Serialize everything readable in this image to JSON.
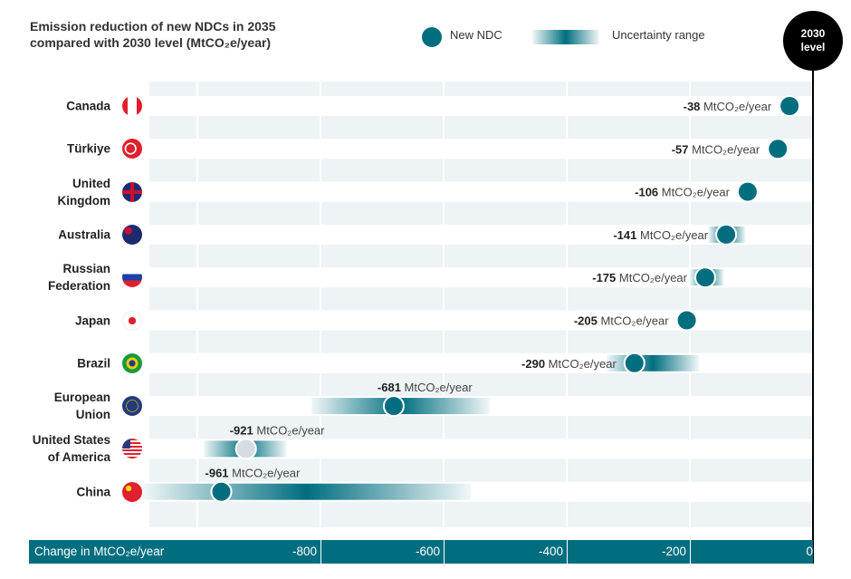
{
  "title_line1": "Emission reduction of new NDCs in 2035",
  "title_line2": "compared with 2030 level (MtCO₂e/year)",
  "legend": {
    "dot": "New NDC",
    "range": "Uncertainty range"
  },
  "reference": {
    "line1": "2030",
    "line2": "level"
  },
  "colors": {
    "accent": "#006e7f",
    "stripe": "#eef3f5",
    "reference": "#000000"
  },
  "chart_data": {
    "type": "dot-range",
    "title": "Emission reduction of new NDCs in 2035 compared with 2030 level (MtCO₂e/year)",
    "xlabel": "Change in  MtCO₂e/year",
    "xlim": [
      -1077,
      0
    ],
    "xticks": [
      -800,
      -600,
      -400,
      -200,
      0
    ],
    "xtick_labels": [
      "-800",
      "-600",
      "-400",
      "-200",
      "0"
    ],
    "unit": "MtCO₂e/year",
    "grid": true,
    "legend_placement": "top",
    "rows": [
      {
        "country": [
          "Canada"
        ],
        "flag": "canada",
        "value": -38,
        "range": null
      },
      {
        "country": [
          "Türkiye"
        ],
        "flag": "turkey",
        "value": -57,
        "range": null
      },
      {
        "country": [
          "United",
          "Kingdom"
        ],
        "flag": "uk",
        "value": -106,
        "range": null
      },
      {
        "country": [
          "Australia"
        ],
        "flag": "australia",
        "value": -141,
        "range": [
          -170,
          -110
        ]
      },
      {
        "country": [
          "Russian",
          "Federation"
        ],
        "flag": "russia",
        "value": -175,
        "range": [
          -200,
          -145
        ]
      },
      {
        "country": [
          "Japan"
        ],
        "flag": "japan",
        "value": -205,
        "range": null
      },
      {
        "country": [
          "Brazil"
        ],
        "flag": "brazil",
        "value": -290,
        "range": [
          -335,
          -185
        ]
      },
      {
        "country": [
          "European",
          "Union"
        ],
        "flag": "eu",
        "value": -681,
        "range": [
          -815,
          -525
        ]
      },
      {
        "country": [
          "United States",
          "of America"
        ],
        "flag": "usa",
        "value": -921,
        "range": [
          -990,
          -855
        ],
        "muted": true
      },
      {
        "country": [
          "China"
        ],
        "flag": "china",
        "value": -961,
        "range": [
          -1090,
          -555
        ]
      }
    ]
  }
}
